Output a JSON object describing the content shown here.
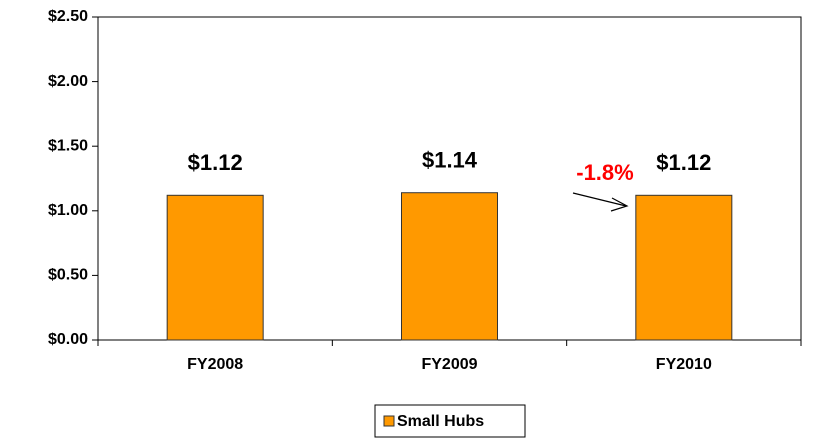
{
  "chart_data": {
    "type": "bar",
    "categories": [
      "FY2008",
      "FY2009",
      "FY2010"
    ],
    "series": [
      {
        "name": "Small Hubs",
        "color": "#ff9900",
        "values": [
          1.12,
          1.14,
          1.12
        ],
        "value_labels": [
          "$1.12",
          "$1.14",
          "$1.12"
        ]
      }
    ],
    "ylim": [
      0,
      2.5
    ],
    "yticks": [
      {
        "value": 0,
        "label": "$0.00"
      },
      {
        "value": 0.5,
        "label": "$0.50"
      },
      {
        "value": 1,
        "label": "$1.00"
      },
      {
        "value": 1.5,
        "label": "$1.50"
      },
      {
        "value": 2,
        "label": "$2.00"
      },
      {
        "value": 2.5,
        "label": "$2.50"
      }
    ],
    "grid": false,
    "annotation": "-1.8%",
    "legend": "bottom"
  }
}
